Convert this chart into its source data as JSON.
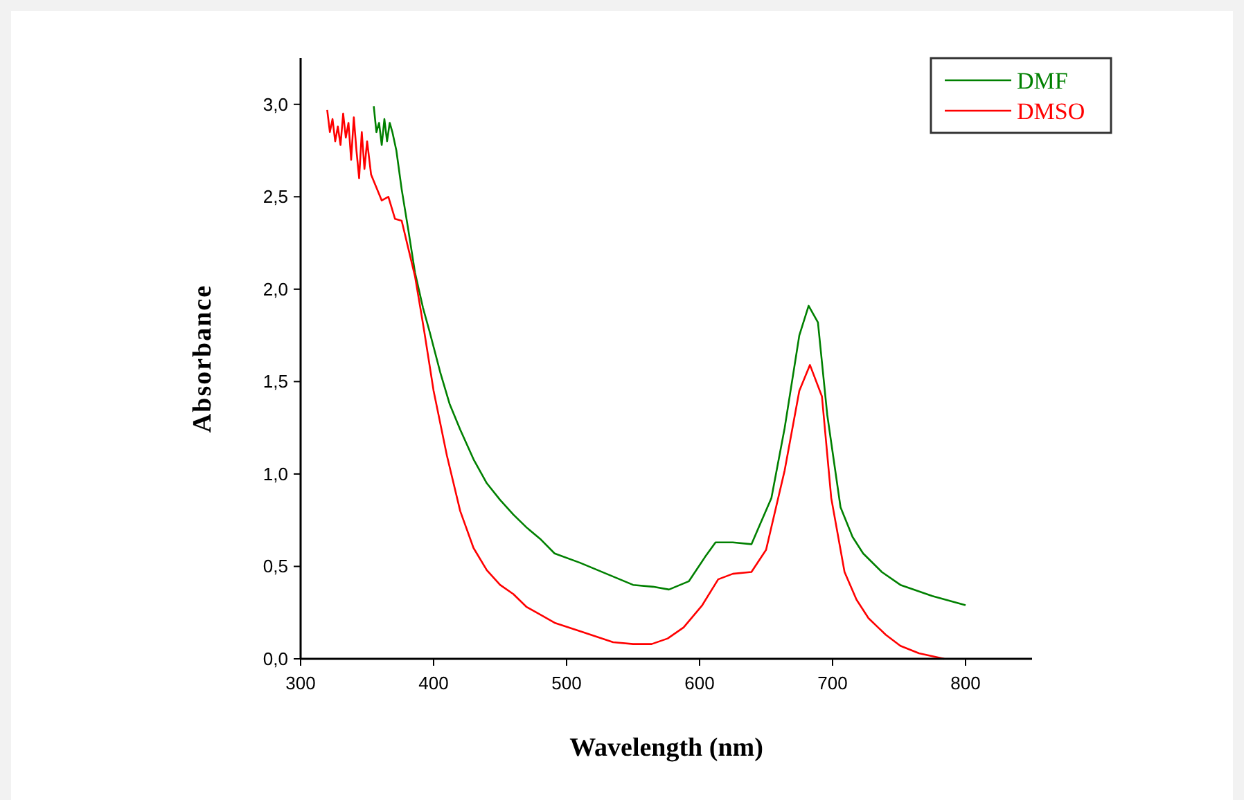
{
  "chart_data": {
    "type": "line",
    "xlabel": "Wavelength (nm)",
    "ylabel": "Absorbance",
    "xlim": [
      300,
      850
    ],
    "xticks": [
      300,
      400,
      500,
      600,
      700,
      800
    ],
    "ylim": [
      0,
      3.25
    ],
    "yticks": [
      {
        "value": 0,
        "label": "0,0"
      },
      {
        "value": 0.5,
        "label": "0,5"
      },
      {
        "value": 1,
        "label": "1,0"
      },
      {
        "value": 1.5,
        "label": "1,5"
      },
      {
        "value": 2,
        "label": "2,0"
      },
      {
        "value": 2.5,
        "label": "2,5"
      },
      {
        "value": 3,
        "label": "3,0"
      }
    ],
    "legend": "top right",
    "grid": false,
    "series": [
      {
        "name": "DMF",
        "color": "#008000",
        "x": [
          355,
          357,
          359,
          361,
          363,
          365,
          367,
          369,
          372,
          376,
          381,
          386,
          392,
          397,
          405,
          412,
          420,
          430,
          440,
          450,
          460,
          470,
          480,
          491,
          510,
          530,
          550,
          565,
          577,
          592,
          604,
          612,
          625,
          639,
          654,
          664,
          675,
          682,
          689,
          696,
          706,
          715,
          723,
          737,
          751,
          775,
          800
        ],
        "values": [
          2.99,
          2.85,
          2.9,
          2.78,
          2.92,
          2.8,
          2.9,
          2.85,
          2.75,
          2.54,
          2.32,
          2.09,
          1.9,
          1.77,
          1.55,
          1.38,
          1.24,
          1.08,
          0.95,
          0.86,
          0.78,
          0.71,
          0.65,
          0.57,
          0.52,
          0.46,
          0.4,
          0.39,
          0.375,
          0.42,
          0.55,
          0.63,
          0.63,
          0.62,
          0.87,
          1.25,
          1.75,
          1.91,
          1.82,
          1.32,
          0.82,
          0.66,
          0.57,
          0.47,
          0.4,
          0.34,
          0.29
        ]
      },
      {
        "name": "DMSO",
        "color": "#ff0000",
        "x": [
          320,
          322,
          324,
          326,
          328,
          330,
          332,
          334,
          336,
          338,
          340,
          342,
          344,
          346,
          348,
          350,
          353,
          357,
          361,
          366,
          371,
          376,
          381,
          386,
          390,
          393,
          400,
          410,
          420,
          430,
          440,
          450,
          460,
          470,
          480,
          491,
          510,
          535,
          550,
          564,
          576,
          588,
          602,
          614,
          625,
          639,
          650,
          664,
          675,
          683,
          692,
          699,
          709,
          718,
          727,
          740,
          751,
          765,
          784
        ],
        "values": [
          2.97,
          2.85,
          2.92,
          2.8,
          2.88,
          2.78,
          2.95,
          2.82,
          2.9,
          2.7,
          2.93,
          2.75,
          2.6,
          2.85,
          2.65,
          2.8,
          2.62,
          2.55,
          2.48,
          2.5,
          2.38,
          2.37,
          2.22,
          2.07,
          1.9,
          1.77,
          1.45,
          1.1,
          0.8,
          0.6,
          0.48,
          0.4,
          0.35,
          0.28,
          0.24,
          0.195,
          0.15,
          0.09,
          0.08,
          0.08,
          0.11,
          0.17,
          0.29,
          0.43,
          0.46,
          0.47,
          0.59,
          1.02,
          1.45,
          1.59,
          1.42,
          0.87,
          0.47,
          0.32,
          0.22,
          0.13,
          0.07,
          0.03,
          0.0
        ]
      }
    ]
  }
}
